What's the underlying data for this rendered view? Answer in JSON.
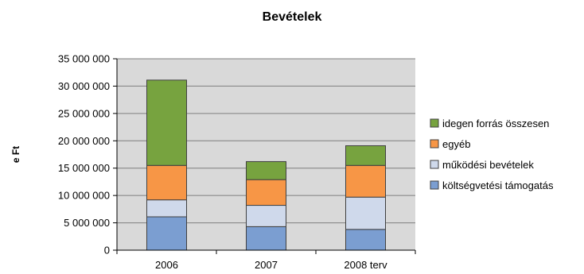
{
  "chart_data": {
    "type": "bar",
    "stacked": true,
    "title": "Bevételek",
    "xlabel": "",
    "ylabel": "e Ft",
    "ylim": [
      0,
      35000000
    ],
    "yticks": [
      0,
      5000000,
      10000000,
      15000000,
      20000000,
      25000000,
      30000000,
      35000000
    ],
    "ytick_labels": [
      "0",
      "5 000 000",
      "10 000 000",
      "15 000 000",
      "20 000 000",
      "25 000 000",
      "30 000 000",
      "35 000 000"
    ],
    "grid": true,
    "legend_position": "right",
    "categories": [
      "2006",
      "2007",
      "2008 terv"
    ],
    "series": [
      {
        "name": "költségvetési támogatás",
        "color": "#7b9ed1",
        "values": [
          6100000,
          4300000,
          3800000
        ]
      },
      {
        "name": "működési bevételek",
        "color": "#cfd9eb",
        "values": [
          3100000,
          3900000,
          5900000
        ]
      },
      {
        "name": "egyéb",
        "color": "#f79646",
        "values": [
          6300000,
          4700000,
          5800000
        ]
      },
      {
        "name": "idegen forrás összesen",
        "color": "#77a33f",
        "values": [
          15600000,
          3300000,
          3600000
        ]
      }
    ],
    "plot_background": "#d9d9d9",
    "gridline_color": "#7f7f7f"
  }
}
